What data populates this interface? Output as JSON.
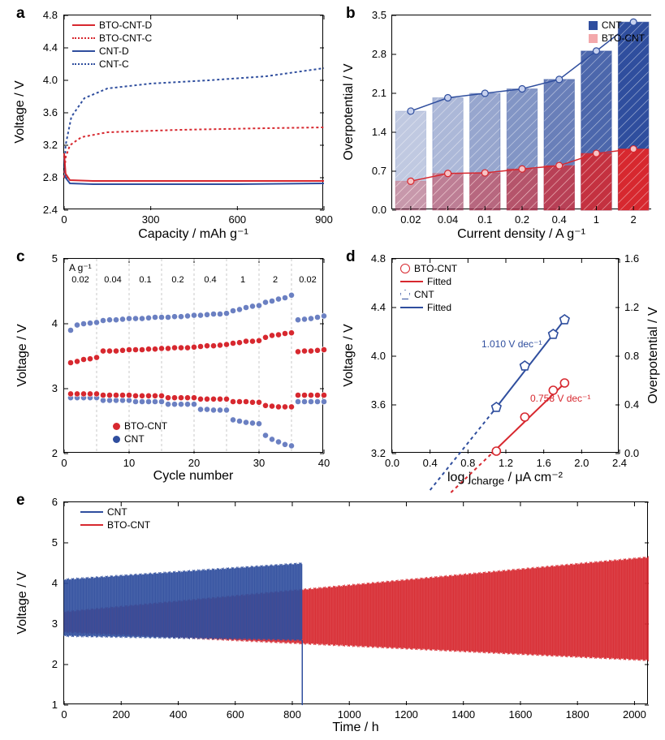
{
  "colors": {
    "red": "#d7282f",
    "blue": "#2f4e9e",
    "red_light": "#f3a8ab",
    "blue_light": "#aab6e0",
    "axis": "#000000",
    "gray": "#b4b4b4"
  },
  "panelA": {
    "label": "a",
    "x": {
      "label": "Capacity / mAh g⁻¹",
      "min": 0,
      "max": 900,
      "ticks": [
        0,
        300,
        600,
        900
      ]
    },
    "y": {
      "label": "Voltage / V",
      "min": 2.4,
      "max": 4.8,
      "ticks": [
        2.4,
        2.8,
        3.2,
        3.6,
        4.0,
        4.4,
        4.8
      ]
    },
    "legend": [
      {
        "label": "BTO-CNT-D",
        "color": "#d7282f",
        "dash": false
      },
      {
        "label": "BTO-CNT-C",
        "color": "#d7282f",
        "dash": true
      },
      {
        "label": "CNT-D",
        "color": "#2f4e9e",
        "dash": false
      },
      {
        "label": "CNT-C",
        "color": "#2f4e9e",
        "dash": true
      }
    ],
    "series": {
      "bto_d": [
        [
          0,
          3.1
        ],
        [
          5,
          2.85
        ],
        [
          20,
          2.77
        ],
        [
          100,
          2.76
        ],
        [
          300,
          2.76
        ],
        [
          600,
          2.76
        ],
        [
          900,
          2.76
        ]
      ],
      "cnt_d": [
        [
          0,
          3.05
        ],
        [
          5,
          2.8
        ],
        [
          20,
          2.73
        ],
        [
          100,
          2.72
        ],
        [
          300,
          2.72
        ],
        [
          600,
          2.72
        ],
        [
          900,
          2.73
        ]
      ],
      "bto_c": [
        [
          0,
          2.8
        ],
        [
          5,
          3.05
        ],
        [
          20,
          3.2
        ],
        [
          60,
          3.3
        ],
        [
          150,
          3.36
        ],
        [
          400,
          3.39
        ],
        [
          700,
          3.41
        ],
        [
          900,
          3.42
        ]
      ],
      "cnt_c": [
        [
          0,
          2.8
        ],
        [
          5,
          3.2
        ],
        [
          25,
          3.55
        ],
        [
          70,
          3.78
        ],
        [
          150,
          3.9
        ],
        [
          300,
          3.96
        ],
        [
          500,
          4.0
        ],
        [
          700,
          4.05
        ],
        [
          900,
          4.15
        ]
      ]
    }
  },
  "panelB": {
    "label": "b",
    "x": {
      "label": "Current density / A g⁻¹",
      "cats": [
        "0.02",
        "0.04",
        "0.1",
        "0.2",
        "0.4",
        "1",
        "2"
      ]
    },
    "y": {
      "label": "Overpotential / V",
      "min": 0.0,
      "max": 3.5,
      "ticks": [
        0.0,
        0.7,
        1.4,
        2.1,
        2.8,
        3.5
      ]
    },
    "legend": [
      {
        "label": "CNT",
        "color": "#2f4e9e"
      },
      {
        "label": "BTO-CNT",
        "color": "#f3a8ab"
      }
    ],
    "bars": {
      "cnt": [
        1.78,
        2.02,
        2.1,
        2.18,
        2.35,
        2.86,
        3.38
      ],
      "bto": [
        0.52,
        0.66,
        0.67,
        0.74,
        0.8,
        1.02,
        1.1
      ]
    },
    "opacity_steps": [
      0.3,
      0.4,
      0.5,
      0.6,
      0.72,
      0.86,
      1.0
    ]
  },
  "panelC": {
    "label": "c",
    "ag_label": "A g⁻¹",
    "rate_labels": [
      "0.02",
      "0.04",
      "0.1",
      "0.2",
      "0.4",
      "1",
      "2",
      "0.02"
    ],
    "x": {
      "label": "Cycle number",
      "min": 0,
      "max": 40,
      "ticks": [
        0,
        10,
        20,
        30,
        40
      ]
    },
    "y": {
      "label": "Voltage / V",
      "min": 2,
      "max": 5,
      "ticks": [
        2,
        3,
        4,
        5
      ]
    },
    "legend": [
      {
        "label": "BTO-CNT",
        "color": "#d7282f"
      },
      {
        "label": "CNT",
        "color": "#2f4e9e"
      }
    ],
    "points": {
      "bto_charge": [
        3.4,
        3.42,
        3.45,
        3.46,
        3.48,
        3.58,
        3.58,
        3.58,
        3.59,
        3.6,
        3.6,
        3.6,
        3.61,
        3.61,
        3.62,
        3.62,
        3.63,
        3.63,
        3.63,
        3.64,
        3.65,
        3.66,
        3.66,
        3.67,
        3.68,
        3.7,
        3.71,
        3.73,
        3.73,
        3.74,
        3.79,
        3.82,
        3.83,
        3.85,
        3.86,
        3.57,
        3.58,
        3.58,
        3.59,
        3.6
      ],
      "bto_disch": [
        2.92,
        2.92,
        2.92,
        2.92,
        2.92,
        2.9,
        2.9,
        2.9,
        2.9,
        2.9,
        2.89,
        2.89,
        2.89,
        2.89,
        2.89,
        2.86,
        2.86,
        2.86,
        2.86,
        2.86,
        2.84,
        2.84,
        2.84,
        2.84,
        2.84,
        2.8,
        2.8,
        2.8,
        2.79,
        2.79,
        2.74,
        2.73,
        2.72,
        2.72,
        2.72,
        2.9,
        2.9,
        2.9,
        2.9,
        2.9
      ],
      "cnt_charge": [
        3.9,
        3.98,
        4.0,
        4.01,
        4.02,
        4.05,
        4.06,
        4.06,
        4.07,
        4.08,
        4.08,
        4.08,
        4.09,
        4.1,
        4.1,
        4.1,
        4.11,
        4.11,
        4.12,
        4.13,
        4.13,
        4.14,
        4.15,
        4.15,
        4.16,
        4.2,
        4.22,
        4.25,
        4.27,
        4.28,
        4.33,
        4.35,
        4.38,
        4.4,
        4.44,
        4.06,
        4.07,
        4.08,
        4.1,
        4.12
      ],
      "cnt_disch": [
        2.86,
        2.86,
        2.86,
        2.86,
        2.86,
        2.82,
        2.82,
        2.82,
        2.82,
        2.82,
        2.8,
        2.8,
        2.8,
        2.8,
        2.8,
        2.76,
        2.76,
        2.76,
        2.76,
        2.76,
        2.68,
        2.68,
        2.67,
        2.67,
        2.67,
        2.52,
        2.5,
        2.48,
        2.47,
        2.46,
        2.28,
        2.22,
        2.18,
        2.14,
        2.12,
        2.8,
        2.8,
        2.8,
        2.8,
        2.8
      ]
    }
  },
  "panelD": {
    "label": "d",
    "x": {
      "label": "log j_charge / μA cm⁻²",
      "min": 0.0,
      "max": 2.4,
      "ticks": [
        0.0,
        0.4,
        0.8,
        1.2,
        1.6,
        2.0,
        2.4
      ]
    },
    "yL": {
      "label": "Voltage / V",
      "min": 3.2,
      "max": 4.8,
      "ticks": [
        3.2,
        3.6,
        4.0,
        4.4,
        4.8
      ]
    },
    "yR": {
      "label": "Overpotential / V",
      "min": 0.0,
      "max": 1.6,
      "ticks": [
        0.0,
        0.4,
        0.8,
        1.2,
        1.6
      ]
    },
    "legend": [
      {
        "label": "BTO-CNT",
        "marker": "circle",
        "color": "#d7282f"
      },
      {
        "label": "Fitted",
        "line": true,
        "color": "#d7282f"
      },
      {
        "label": "CNT",
        "marker": "pentagon",
        "color": "#2f4e9e"
      },
      {
        "label": "Fitted",
        "line": true,
        "color": "#2f4e9e"
      }
    ],
    "slope_bto_text": "0.758 V dec⁻¹",
    "slope_cnt_text": "1.010 V dec⁻¹",
    "points_cnt": [
      [
        1.1,
        3.58
      ],
      [
        1.4,
        3.92
      ],
      [
        1.7,
        4.18
      ],
      [
        1.82,
        4.3
      ]
    ],
    "points_bto": [
      [
        1.1,
        3.22
      ],
      [
        1.4,
        3.5
      ],
      [
        1.7,
        3.72
      ],
      [
        1.82,
        3.78
      ]
    ],
    "fit_cnt": {
      "solid": [
        [
          1.05,
          3.53
        ],
        [
          1.85,
          4.33
        ]
      ],
      "dash": [
        [
          0.4,
          2.9
        ],
        [
          1.05,
          3.53
        ]
      ]
    },
    "fit_bto": {
      "solid": [
        [
          1.05,
          3.2
        ],
        [
          1.85,
          3.8
        ]
      ],
      "dash": [
        [
          0.62,
          2.88
        ],
        [
          1.05,
          3.2
        ]
      ]
    }
  },
  "panelE": {
    "label": "e",
    "x": {
      "label": "Time / h",
      "min": 0,
      "max": 2050,
      "ticks": [
        0,
        200,
        400,
        600,
        800,
        1000,
        1200,
        1400,
        1600,
        1800,
        2000
      ]
    },
    "y": {
      "label": "Voltage / V",
      "min": 1,
      "max": 6,
      "ticks": [
        1,
        2,
        3,
        4,
        5,
        6
      ]
    },
    "legend": [
      {
        "label": "CNT",
        "color": "#2f4e9e"
      },
      {
        "label": "BTO-CNT",
        "color": "#d7282f"
      }
    ],
    "cnt_fail_h": 835,
    "envelopes": {
      "cnt": {
        "start": [
          2.7,
          4.1
        ],
        "end_at_fail": [
          2.6,
          4.5
        ]
      },
      "bto": {
        "start": [
          2.8,
          3.3
        ],
        "end": [
          2.1,
          4.65
        ]
      }
    }
  }
}
